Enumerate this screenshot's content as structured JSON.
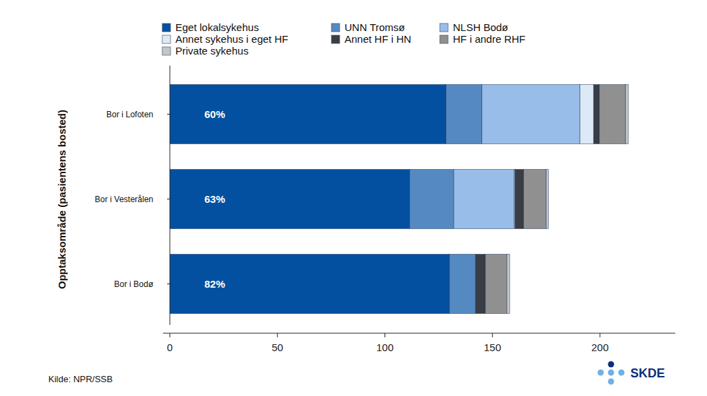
{
  "chart_data": {
    "type": "bar",
    "orientation": "horizontal",
    "stacked": true,
    "grid": false,
    "legend": "top",
    "y_label": "Opptaksområde (pasientens bosted)",
    "categories": [
      "Bor i Lofoten",
      "Bor i Vesterålen",
      "Bor i Bodø"
    ],
    "series": [
      {
        "name": "Eget lokalsykehus",
        "color": "#0450a0",
        "values": [
          128.4,
          111.5,
          130
        ]
      },
      {
        "name": "UNN Tromsø",
        "color": "#5589c1",
        "values": [
          16.7,
          20.5,
          12.2
        ]
      },
      {
        "name": "NLSH Bodø",
        "color": "#98bde8",
        "values": [
          45.6,
          28,
          0
        ]
      },
      {
        "name": "Annet sykehus i eget HF",
        "color": "#dce9f7",
        "values": [
          6.4,
          0.5,
          0
        ]
      },
      {
        "name": "Annet HF i HN",
        "color": "#393d45",
        "values": [
          2.6,
          4,
          4.5
        ]
      },
      {
        "name": "HF i andre RHF",
        "color": "#909090",
        "values": [
          12.2,
          10.5,
          10
        ]
      },
      {
        "name": "Private sykehus",
        "color": "#c3c7c9",
        "values": [
          1.3,
          1,
          1.3
        ]
      }
    ],
    "annotations": [
      "60%",
      "63%",
      "82%"
    ],
    "xlim": [
      0,
      235
    ],
    "xticks": [
      0,
      50,
      100,
      150,
      200
    ],
    "source": "Kilde: NPR/SSB",
    "logo": "SKDE"
  }
}
